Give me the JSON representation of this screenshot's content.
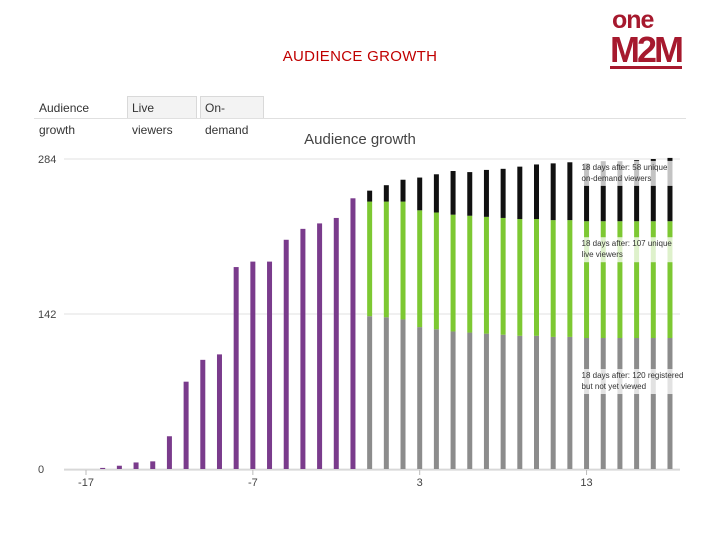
{
  "slide": {
    "title": "AUDIENCE GROWTH"
  },
  "logo": {
    "line1": "one",
    "line2": "M2M"
  },
  "tabs": [
    {
      "label": "Audience growth",
      "active": true
    },
    {
      "label": "Live viewers",
      "active": false
    },
    {
      "label": "On-demand",
      "active": false
    }
  ],
  "colors": {
    "registered": "#8c8c8c",
    "live": "#7dc832",
    "ondemand": "#111111",
    "pre_event": "#7a3b8c",
    "grid": "#e2e2e2"
  },
  "chart_data": {
    "type": "bar",
    "stacked": true,
    "title": "Audience growth",
    "xlabel": "",
    "ylabel": "",
    "ylim": [
      0,
      284
    ],
    "y_ticks": [
      0,
      142,
      284
    ],
    "x_ticks": [
      -17,
      -7,
      3,
      13
    ],
    "grid": true,
    "x": [
      -17,
      -16,
      -15,
      -14,
      -13,
      -12,
      -11,
      -10,
      -9,
      -8,
      -7,
      -6,
      -5,
      -4,
      -3,
      -2,
      -1,
      0,
      1,
      2,
      3,
      4,
      5,
      6,
      7,
      8,
      9,
      10,
      11,
      12,
      13,
      14,
      15,
      16,
      17,
      18
    ],
    "series": [
      {
        "key": "pre_event",
        "values": [
          0,
          1,
          3,
          6,
          7,
          30,
          80,
          100,
          105,
          185,
          190,
          190,
          210,
          220,
          225,
          230,
          248,
          0,
          0,
          0,
          0,
          0,
          0,
          0,
          0,
          0,
          0,
          0,
          0,
          0,
          0,
          0,
          0,
          0,
          0,
          0
        ]
      },
      {
        "key": "registered",
        "values": [
          0,
          0,
          0,
          0,
          0,
          0,
          0,
          0,
          0,
          0,
          0,
          0,
          0,
          0,
          0,
          0,
          0,
          140,
          139,
          137,
          130,
          128,
          126,
          125,
          124,
          123,
          122,
          122,
          121,
          121,
          120,
          120,
          120,
          120,
          120,
          120
        ]
      },
      {
        "key": "live",
        "values": [
          0,
          0,
          0,
          0,
          0,
          0,
          0,
          0,
          0,
          0,
          0,
          0,
          0,
          0,
          0,
          0,
          0,
          105,
          106,
          108,
          107,
          107,
          107,
          107,
          107,
          107,
          107,
          107,
          107,
          107,
          107,
          107,
          107,
          107,
          107,
          107
        ]
      },
      {
        "key": "ondemand",
        "values": [
          0,
          0,
          0,
          0,
          0,
          0,
          0,
          0,
          0,
          0,
          0,
          0,
          0,
          0,
          0,
          0,
          0,
          10,
          15,
          20,
          30,
          35,
          40,
          40,
          43,
          45,
          48,
          50,
          52,
          53,
          53,
          55,
          55,
          56,
          57,
          58
        ]
      }
    ],
    "annotations": [
      {
        "lines": [
          "18 days after: 58 unique",
          "on-demand viewers"
        ],
        "series": "ondemand"
      },
      {
        "lines": [
          "18 days after: 107 unique",
          "live viewers"
        ],
        "series": "live"
      },
      {
        "lines": [
          "18 days after: 120 registered",
          "but not yet viewed"
        ],
        "series": "registered"
      }
    ]
  }
}
